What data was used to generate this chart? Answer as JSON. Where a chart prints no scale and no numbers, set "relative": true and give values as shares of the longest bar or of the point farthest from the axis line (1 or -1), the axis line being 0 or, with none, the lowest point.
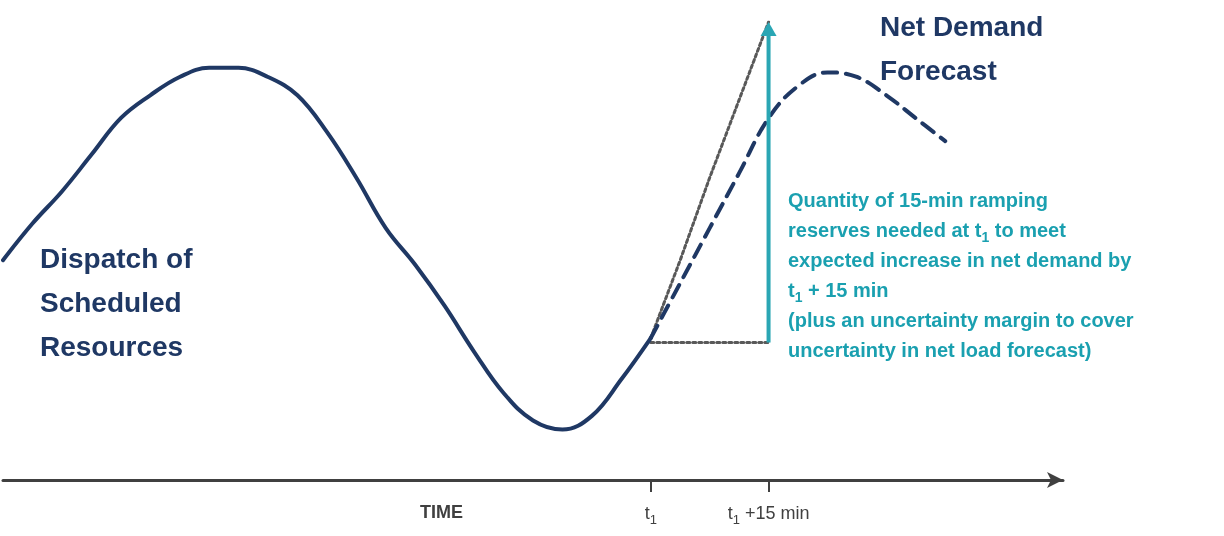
{
  "chart_data": {
    "type": "line",
    "relative": true,
    "xlabel": "TIME",
    "legend": false,
    "marker": "none",
    "grid": false,
    "categories": [
      null,
      null,
      null,
      null,
      null,
      null,
      null,
      null,
      null,
      null,
      null,
      null,
      null,
      null,
      null,
      null,
      null,
      null,
      null,
      null,
      null,
      null,
      "t$_{1}$",
      null,
      null,
      null,
      "t$_{1}$ +15 min",
      null,
      null,
      null,
      null,
      null,
      null,
      null,
      null,
      null,
      null
    ],
    "series": [
      {
        "name": "Dispatch of Scheduled Resources",
        "color": "#1f3864",
        "line_style": "solid",
        "values": [
          0.48,
          0.56,
          0.63,
          0.71,
          0.79,
          0.84,
          0.88,
          0.9,
          0.9,
          0.88,
          0.84,
          0.76,
          0.66,
          0.55,
          0.47,
          0.38,
          0.28,
          0.19,
          0.13,
          0.11,
          0.14,
          0.22,
          0.31,
          null,
          null,
          null,
          null,
          null,
          null,
          null,
          null,
          null,
          null,
          null,
          null,
          null,
          null
        ]
      },
      {
        "name": "Net Demand Forecast",
        "color": "#1f3864",
        "line_style": "dashed",
        "values": [
          null,
          null,
          null,
          null,
          null,
          null,
          null,
          null,
          null,
          null,
          null,
          null,
          null,
          null,
          null,
          null,
          null,
          null,
          null,
          null,
          null,
          null,
          0.31,
          0.43,
          0.55,
          0.67,
          0.79,
          0.86,
          0.89,
          0.88,
          0.84,
          0.79,
          0.74,
          null,
          null,
          null,
          null
        ]
      },
      {
        "color": "#595959",
        "line_style": "dotted",
        "values": [
          null,
          null,
          null,
          null,
          null,
          null,
          null,
          null,
          null,
          null,
          null,
          null,
          null,
          null,
          null,
          null,
          null,
          null,
          null,
          null,
          null,
          null,
          0.31,
          0.48,
          0.66,
          0.83,
          1.0,
          null,
          null,
          null,
          null,
          null,
          null,
          null,
          null,
          null,
          null
        ]
      },
      {
        "color": "#595959",
        "line_style": "dotted",
        "values": [
          null,
          null,
          null,
          null,
          null,
          null,
          null,
          null,
          null,
          null,
          null,
          null,
          null,
          null,
          null,
          null,
          null,
          null,
          null,
          null,
          null,
          null,
          0.3,
          0.3,
          0.3,
          0.3,
          0.3,
          null,
          null,
          null,
          null,
          null,
          null,
          null,
          null,
          null,
          null
        ]
      }
    ],
    "annotations": [
      "Quantity of 15-min ramping\nreserves needed at t$_{1}$ to meet\nexpected increase in net demand by\nt$_{1}$ + 15 min\n(plus an uncertainty margin to cover\nuncertainty in net load forecast)"
    ]
  }
}
